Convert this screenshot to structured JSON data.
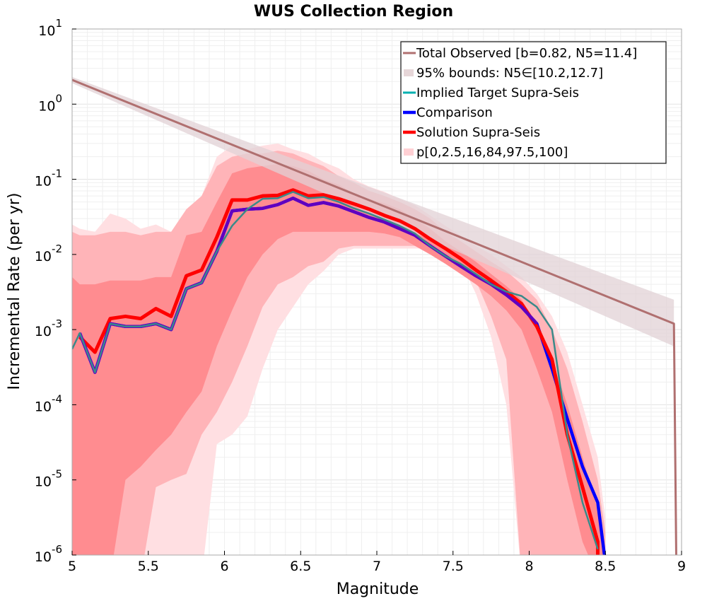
{
  "chart_data": {
    "type": "line",
    "title": "WUS Collection Region",
    "xlabel": "Magnitude",
    "ylabel": "Incremental Rate (per yr)",
    "xlim": [
      5,
      9
    ],
    "ylim": [
      1e-06,
      10
    ],
    "yscale": "log",
    "grid": true,
    "legend_position": "top-right",
    "xticks": [
      "5",
      "5.5",
      "6",
      "6.5",
      "7",
      "7.5",
      "8",
      "8.5",
      "9"
    ],
    "xtick_values": [
      5,
      5.5,
      6,
      6.5,
      7,
      7.5,
      8,
      8.5,
      9
    ],
    "ytick_exponents": [
      "1",
      "0",
      "-1",
      "-2",
      "-3",
      "-4",
      "-5",
      "-6"
    ],
    "ytick_values": [
      10,
      1,
      0.1,
      0.01,
      0.001,
      0.0001,
      1e-05,
      1e-06
    ],
    "legend": [
      {
        "label": "Total Observed [b=0.82, N5=11.4]",
        "color": "#b07070",
        "style": "line"
      },
      {
        "label": "95% bounds: N5∈[10.2,12.7]",
        "color": "#e6d6d8",
        "style": "patch"
      },
      {
        "label": "Implied Target Supra-Seis",
        "color": "#00b0b0",
        "style": "line"
      },
      {
        "label": "Comparison",
        "color": "#0000ff",
        "style": "thickline"
      },
      {
        "label": "Solution Supra-Seis",
        "color": "#ff0000",
        "style": "thickline"
      },
      {
        "label": "p[0,2.5,16,84,97.5,100]",
        "color": "#ffd0d4",
        "style": "patch"
      }
    ],
    "colors": {
      "total_observed": "#b07070",
      "bounds_fill": "#e2d2d5",
      "implied_target": "#3a8a8a",
      "comparison": "#0000ff",
      "overlap": "#6000c0",
      "solution": "#ff0000",
      "band_outer": "#ffdfe2",
      "band_mid": "#ffb4b8",
      "band_inner": "#ff8c90"
    },
    "series": [
      {
        "name": "Total Observed [b=0.82, N5=11.4]",
        "x": [
          5.0,
          8.95,
          8.97
        ],
        "y": [
          2.1,
          0.0012,
          1e-07
        ]
      },
      {
        "name": "95% bounds: N5∈[10.2,12.7]",
        "x": [
          5.0,
          8.95
        ],
        "y_low": [
          1.9,
          0.0006
        ],
        "y_high": [
          2.3,
          0.0025
        ]
      },
      {
        "name": "Implied Target Supra-Seis",
        "x": [
          5.0,
          5.05,
          5.15,
          5.25,
          5.35,
          5.45,
          5.55,
          5.65,
          5.75,
          5.85,
          5.95,
          6.05,
          6.15,
          6.25,
          6.35,
          6.45,
          6.55,
          6.65,
          6.75,
          6.85,
          6.95,
          7.05,
          7.15,
          7.25,
          7.35,
          7.45,
          7.55,
          7.65,
          7.75,
          7.85,
          7.95,
          8.05,
          8.15,
          8.25,
          8.35,
          8.45
        ],
        "y": [
          0.00055,
          0.0009,
          0.00027,
          0.0012,
          0.0011,
          0.0011,
          0.0012,
          0.001,
          0.0035,
          0.0042,
          0.011,
          0.024,
          0.04,
          0.055,
          0.056,
          0.068,
          0.056,
          0.058,
          0.05,
          0.041,
          0.035,
          0.029,
          0.024,
          0.019,
          0.013,
          0.0095,
          0.0075,
          0.0055,
          0.004,
          0.0032,
          0.0028,
          0.002,
          0.001,
          4e-05,
          5e-06,
          1.2e-06
        ]
      },
      {
        "name": "Comparison",
        "x": [
          5.05,
          5.15,
          5.25,
          5.35,
          5.45,
          5.55,
          5.65,
          5.75,
          5.85,
          5.95,
          6.05,
          6.15,
          6.25,
          6.35,
          6.45,
          6.55,
          6.65,
          6.75,
          6.85,
          6.95,
          7.05,
          7.15,
          7.25,
          7.35,
          7.45,
          7.55,
          7.65,
          7.75,
          7.85,
          7.95,
          8.05,
          8.15,
          8.25,
          8.35,
          8.45,
          8.5
        ],
        "y": [
          0.0009,
          0.00027,
          0.0012,
          0.0011,
          0.0011,
          0.0012,
          0.001,
          0.0035,
          0.0042,
          0.011,
          0.038,
          0.04,
          0.041,
          0.046,
          0.056,
          0.045,
          0.049,
          0.044,
          0.037,
          0.031,
          0.027,
          0.022,
          0.018,
          0.013,
          0.0095,
          0.007,
          0.0052,
          0.004,
          0.0029,
          0.002,
          0.0012,
          0.0003,
          6.5e-05,
          1.5e-05,
          5e-06,
          8e-07
        ]
      },
      {
        "name": "Solution Supra-Seis",
        "x": [
          5.05,
          5.15,
          5.25,
          5.35,
          5.45,
          5.55,
          5.65,
          5.75,
          5.85,
          5.95,
          6.05,
          6.15,
          6.25,
          6.35,
          6.45,
          6.55,
          6.65,
          6.75,
          6.85,
          6.95,
          7.05,
          7.15,
          7.25,
          7.35,
          7.45,
          7.55,
          7.65,
          7.75,
          7.85,
          7.95,
          8.05,
          8.15,
          8.25,
          8.35,
          8.45,
          8.45
        ],
        "y": [
          0.0008,
          0.0005,
          0.0014,
          0.0015,
          0.0014,
          0.0019,
          0.0015,
          0.0052,
          0.0062,
          0.017,
          0.053,
          0.053,
          0.06,
          0.061,
          0.072,
          0.06,
          0.062,
          0.055,
          0.047,
          0.04,
          0.033,
          0.028,
          0.022,
          0.016,
          0.012,
          0.0088,
          0.0062,
          0.0045,
          0.0032,
          0.0022,
          0.0011,
          0.0004,
          4e-05,
          8e-06,
          1.5e-06,
          9e-07
        ]
      },
      {
        "name": "p[0,2.5,16,84,97.5,100]",
        "x": [
          5.0,
          5.05,
          5.15,
          5.25,
          5.35,
          5.45,
          5.55,
          5.65,
          5.75,
          5.85,
          5.95,
          6.05,
          6.15,
          6.25,
          6.35,
          6.45,
          6.55,
          6.65,
          6.75,
          6.85,
          6.95,
          7.05,
          7.15,
          7.25,
          7.35,
          7.45,
          7.55,
          7.65,
          7.75,
          7.85,
          7.95,
          8.05,
          8.15,
          8.25,
          8.35,
          8.45,
          8.5
        ],
        "p0": [
          5e-07,
          5e-07,
          5e-07,
          5e-07,
          5e-07,
          5e-07,
          5e-07,
          5e-07,
          5e-07,
          5e-07,
          3e-05,
          4e-05,
          7e-05,
          0.0003,
          0.001,
          0.002,
          0.004,
          0.006,
          0.01,
          0.012,
          0.012,
          0.012,
          0.012,
          0.012,
          0.012,
          0.012,
          0.008,
          0.003,
          0.0008,
          0.0001,
          5e-07,
          5e-07,
          5e-07,
          5e-07,
          5e-07,
          5e-07,
          5e-07
        ],
        "p2_5": [
          5e-07,
          5e-07,
          5e-07,
          5e-07,
          5e-07,
          5e-07,
          8e-06,
          1e-05,
          1.2e-05,
          4e-05,
          8e-05,
          0.0002,
          0.0006,
          0.002,
          0.004,
          0.005,
          0.007,
          0.008,
          0.012,
          0.013,
          0.013,
          0.013,
          0.013,
          0.013,
          0.013,
          0.013,
          0.0095,
          0.0045,
          0.0015,
          0.0004,
          5e-07,
          5e-07,
          5e-07,
          5e-07,
          5e-07,
          5e-07,
          5e-07
        ],
        "p16": [
          5e-07,
          5e-07,
          5e-07,
          5e-07,
          1e-05,
          1.5e-05,
          2.5e-05,
          4e-05,
          8e-05,
          0.00015,
          0.0006,
          0.0018,
          0.005,
          0.01,
          0.016,
          0.02,
          0.02,
          0.02,
          0.02,
          0.02,
          0.02,
          0.019,
          0.017,
          0.013,
          0.01,
          0.0075,
          0.0055,
          0.004,
          0.0028,
          0.0018,
          0.001,
          0.0003,
          8e-05,
          1e-05,
          1.5e-06,
          5e-07,
          5e-07
        ],
        "p84": [
          0.005,
          0.004,
          0.004,
          0.0045,
          0.0045,
          0.0045,
          0.005,
          0.005,
          0.018,
          0.02,
          0.05,
          0.12,
          0.14,
          0.15,
          0.16,
          0.15,
          0.13,
          0.1,
          0.085,
          0.065,
          0.055,
          0.048,
          0.04,
          0.03,
          0.022,
          0.015,
          0.011,
          0.008,
          0.0055,
          0.0038,
          0.0025,
          0.0012,
          0.0004,
          0.0001,
          2e-05,
          4e-06,
          1e-06
        ],
        "p97_5": [
          0.02,
          0.018,
          0.018,
          0.02,
          0.02,
          0.018,
          0.02,
          0.02,
          0.04,
          0.06,
          0.15,
          0.2,
          0.22,
          0.22,
          0.24,
          0.22,
          0.18,
          0.15,
          0.11,
          0.09,
          0.07,
          0.06,
          0.05,
          0.04,
          0.03,
          0.02,
          0.015,
          0.011,
          0.008,
          0.006,
          0.004,
          0.0025,
          0.001,
          0.0003,
          6e-05,
          1e-05,
          2e-06
        ],
        "p100": [
          0.025,
          0.022,
          0.02,
          0.035,
          0.03,
          0.022,
          0.025,
          0.02,
          0.03,
          0.06,
          0.2,
          0.28,
          0.25,
          0.28,
          0.3,
          0.25,
          0.22,
          0.17,
          0.14,
          0.1,
          0.08,
          0.068,
          0.055,
          0.045,
          0.033,
          0.024,
          0.018,
          0.013,
          0.01,
          0.007,
          0.005,
          0.003,
          0.0015,
          0.0005,
          0.0001,
          2e-05,
          3e-06
        ]
      }
    ]
  }
}
